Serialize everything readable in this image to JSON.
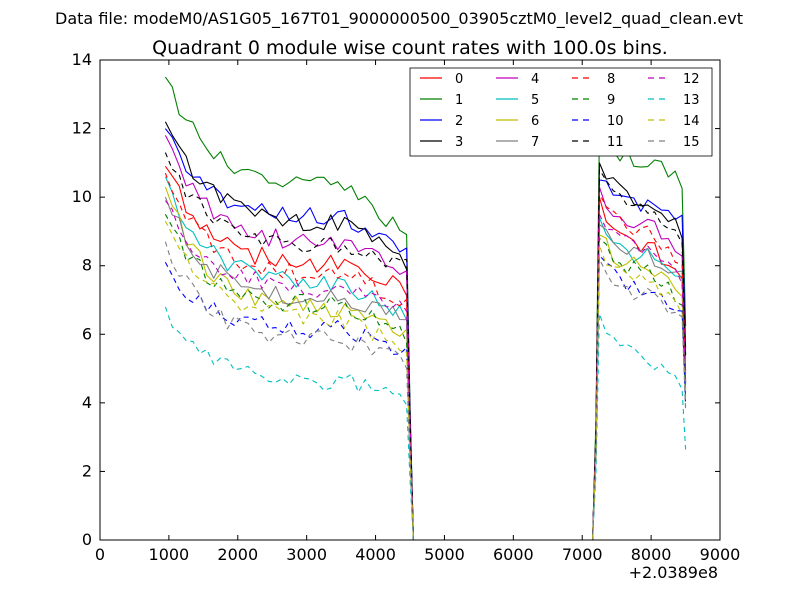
{
  "chart_data": {
    "type": "line",
    "suptitle": "Data file: modeM0/AS1G05_167T01_9000000500_03905cztM0_level2_quad_clean.evt",
    "title": "Quadrant 0 module wise count rates with 100.0s bins.",
    "xlabel": "",
    "ylabel": "",
    "x_offset_label": "+2.0389e8",
    "xlim": [
      0,
      9000
    ],
    "ylim": [
      0,
      14
    ],
    "xticks": [
      0,
      1000,
      2000,
      3000,
      4000,
      5000,
      6000,
      7000,
      8000,
      9000
    ],
    "yticks": [
      0,
      2,
      4,
      6,
      8,
      10,
      12,
      14
    ],
    "legend_position": "top-right",
    "legend_columns": 4,
    "segment_starts": [
      950,
      7250
    ],
    "segment_ends": [
      4450,
      8450
    ],
    "zero_range": [
      4550,
      7150
    ],
    "series": [
      {
        "name": "0",
        "color": "#ff0000",
        "style": "solid",
        "start": 10.9,
        "level": 8.0,
        "end": 7.3,
        "s2start": 10.0,
        "s2level": 8.5,
        "s2end": 7.7
      },
      {
        "name": "1",
        "color": "#008000",
        "style": "solid",
        "start": 13.5,
        "level": 10.3,
        "end": 8.8,
        "s2start": 11.9,
        "s2level": 11.0,
        "s2end": 10.4
      },
      {
        "name": "2",
        "color": "#0000ff",
        "style": "solid",
        "start": 12.0,
        "level": 9.4,
        "end": 8.4,
        "s2start": 10.5,
        "s2level": 9.7,
        "s2end": 9.3
      },
      {
        "name": "3",
        "color": "#000000",
        "style": "solid",
        "start": 12.2,
        "level": 9.2,
        "end": 8.1,
        "s2start": 11.0,
        "s2level": 9.8,
        "s2end": 9.0
      },
      {
        "name": "4",
        "color": "#bf00bf",
        "style": "solid",
        "start": 11.8,
        "level": 8.6,
        "end": 7.9,
        "s2start": 10.3,
        "s2level": 9.2,
        "s2end": 8.2
      },
      {
        "name": "5",
        "color": "#00bfbf",
        "style": "solid",
        "start": 10.6,
        "level": 7.4,
        "end": 6.6,
        "s2start": 9.4,
        "s2level": 8.2,
        "s2end": 7.6
      },
      {
        "name": "6",
        "color": "#bfbf00",
        "style": "solid",
        "start": 10.3,
        "level": 6.7,
        "end": 6.0,
        "s2start": 8.9,
        "s2level": 7.9,
        "s2end": 7.3
      },
      {
        "name": "7",
        "color": "#808080",
        "style": "solid",
        "start": 10.0,
        "level": 7.0,
        "end": 6.4,
        "s2start": 9.2,
        "s2level": 8.3,
        "s2end": 7.6
      },
      {
        "name": "8",
        "color": "#ff0000",
        "style": "dashed",
        "start": 10.7,
        "level": 7.7,
        "end": 7.0,
        "s2start": 10.1,
        "s2level": 8.9,
        "s2end": 8.1
      },
      {
        "name": "9",
        "color": "#008000",
        "style": "dashed",
        "start": 9.5,
        "level": 6.8,
        "end": 6.0,
        "s2start": 8.8,
        "s2level": 7.8,
        "s2end": 6.9
      },
      {
        "name": "10",
        "color": "#0000ff",
        "style": "dashed",
        "start": 8.1,
        "level": 6.1,
        "end": 5.5,
        "s2start": 8.3,
        "s2level": 7.3,
        "s2end": 6.5
      },
      {
        "name": "11",
        "color": "#000000",
        "style": "dashed",
        "start": 11.3,
        "level": 8.5,
        "end": 8.0,
        "s2start": 10.8,
        "s2level": 9.6,
        "s2end": 8.8
      },
      {
        "name": "12",
        "color": "#bf00bf",
        "style": "dashed",
        "start": 9.9,
        "level": 7.3,
        "end": 6.7,
        "s2start": 9.5,
        "s2level": 8.5,
        "s2end": 7.7
      },
      {
        "name": "13",
        "color": "#00bfbf",
        "style": "dashed",
        "start": 6.8,
        "level": 4.6,
        "end": 4.0,
        "s2start": 6.6,
        "s2level": 5.2,
        "s2end": 4.4
      },
      {
        "name": "14",
        "color": "#bfbf00",
        "style": "dashed",
        "start": 9.3,
        "level": 6.4,
        "end": 5.6,
        "s2start": 8.6,
        "s2level": 7.5,
        "s2end": 6.6
      },
      {
        "name": "15",
        "color": "#808080",
        "style": "dashed",
        "start": 8.7,
        "level": 5.8,
        "end": 5.2,
        "s2start": 8.2,
        "s2level": 7.1,
        "s2end": 6.3
      }
    ]
  }
}
